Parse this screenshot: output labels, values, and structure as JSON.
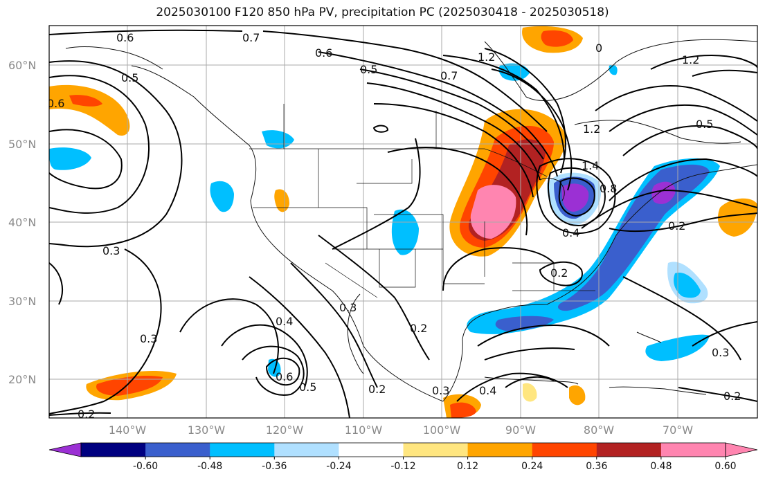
{
  "title": "2025030100 F120 850 hPa PV, precipitation PC (2025030418 - 2025030518)",
  "lat_labels": [
    "60°N",
    "50°N",
    "40°N",
    "30°N",
    "20°N"
  ],
  "lon_labels": [
    "140°W",
    "130°W",
    "120°W",
    "110°W",
    "100°W",
    "90°W",
    "80°W",
    "70°W"
  ],
  "colorbar": {
    "labels": [
      "-0.60",
      "-0.48",
      "-0.36",
      "-0.24",
      "-0.12",
      "0.12",
      "0.24",
      "0.36",
      "0.48",
      "0.60"
    ],
    "colors": [
      "#9b30d4",
      "#000080",
      "#3a5fcd",
      "#00bfff",
      "#b0e0ff",
      "#ffffff",
      "#ffe680",
      "#ffa500",
      "#ff4500",
      "#b22222",
      "#ff85b0",
      "#ff85b0"
    ]
  },
  "contour_labels": [
    "0.6",
    "0.7",
    "0.6",
    "0.5",
    "1.2",
    "0.7",
    "1.2",
    "0.5",
    "0.6",
    "1.2",
    "1.4",
    "0.8",
    "0.4",
    "0.5",
    "0.2",
    "0.3",
    "0.2",
    "0.3",
    "0.4",
    "0.3",
    "0.2",
    "0.3",
    "0.6",
    "0.5",
    "0.2",
    "0.3",
    "0.4",
    "0.2",
    "0.2",
    "0"
  ]
}
